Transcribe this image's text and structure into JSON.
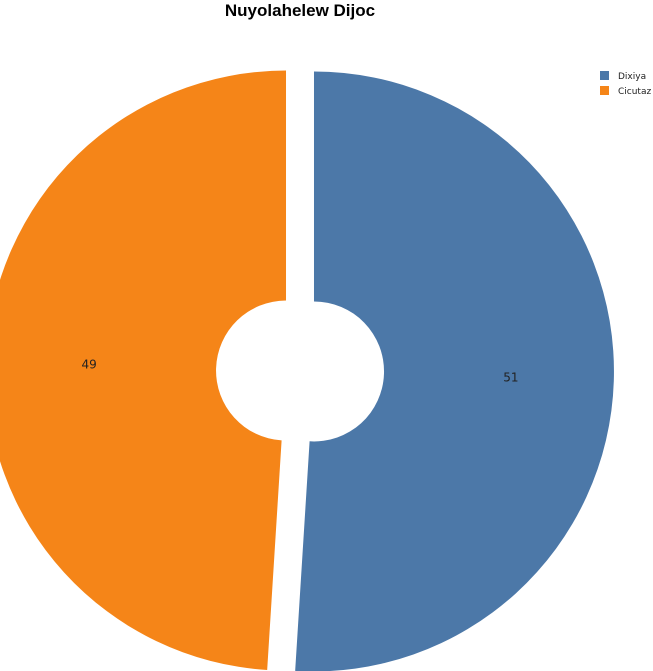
{
  "chart_data": {
    "type": "pie",
    "style": "donut-exploded",
    "title": "Nuyolahelew Dijoc",
    "slices": [
      {
        "label": "Dixiya",
        "value": 51,
        "color": "#4c78a8"
      },
      {
        "label": "Cicutaz",
        "value": 49,
        "color": "#f58518"
      }
    ],
    "legend_position": "top-right",
    "show_values": true
  }
}
